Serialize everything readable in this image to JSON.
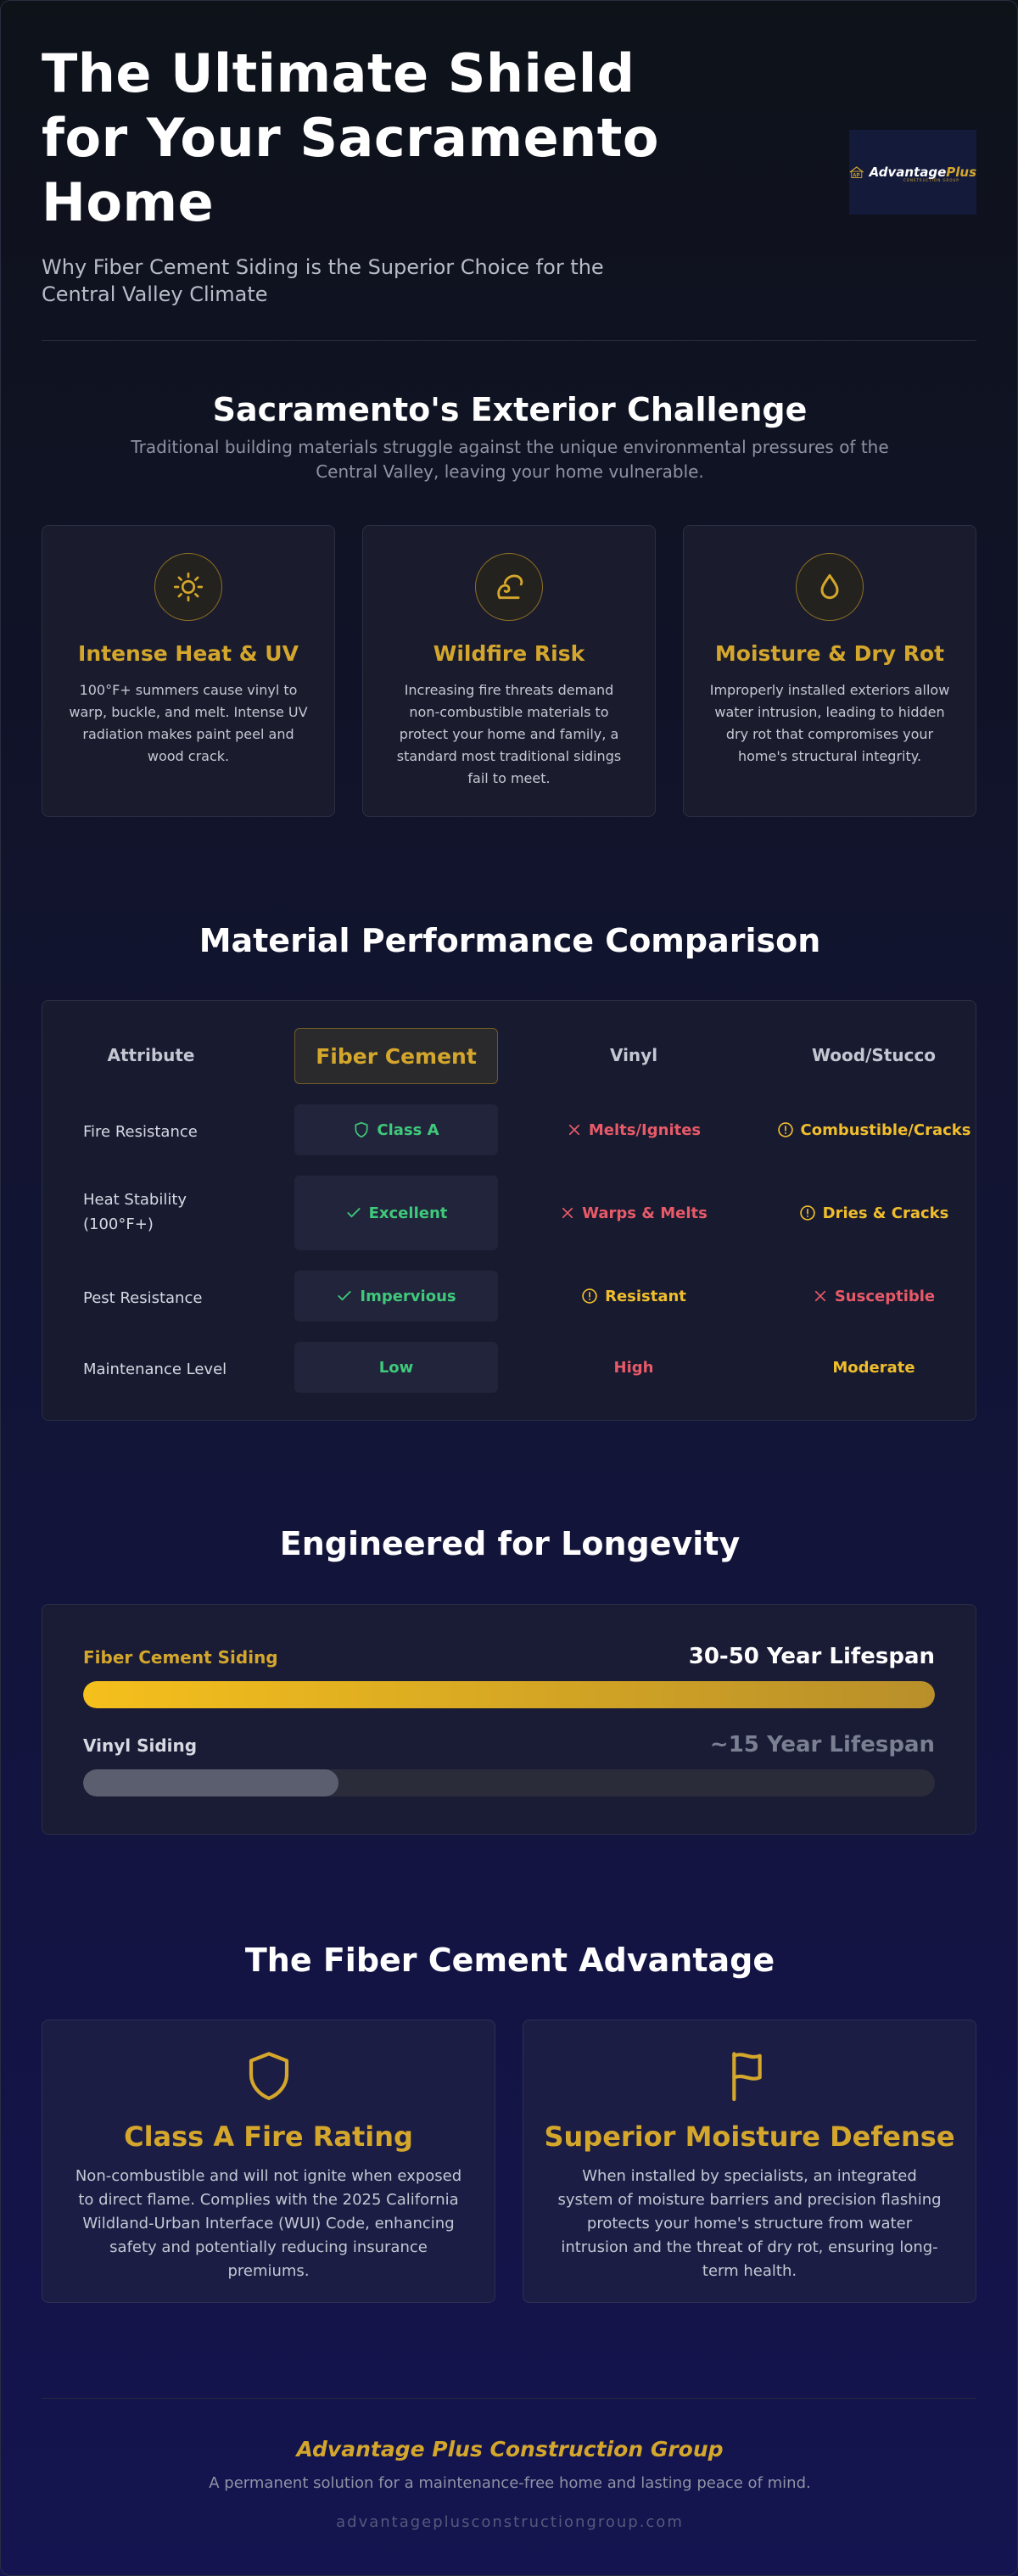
{
  "header": {
    "title": "The Ultimate Shield for Your Sacramento Home",
    "subtitle": "Why Fiber Cement Siding is the Superior Choice for the Central Valley Climate",
    "logo": {
      "brand": "Advantage",
      "brand_accent": "Plus",
      "tagline": "CONSTRUCTION GROUP"
    }
  },
  "challenge": {
    "title": "Sacramento's Exterior Challenge",
    "subtitle": "Traditional building materials struggle against the unique environmental pressures of the Central Valley, leaving your home vulnerable.",
    "cards": [
      {
        "icon": "sun-icon",
        "title": "Intense Heat & UV",
        "text": "100°F+ summers cause vinyl to warp, buckle, and melt. Intense UV radiation makes paint peel and wood crack."
      },
      {
        "icon": "fire-icon",
        "title": "Wildfire Risk",
        "text": "Increasing fire threats demand non-combustible materials to protect your home and family, a standard most traditional sidings fail to meet."
      },
      {
        "icon": "droplet-icon",
        "title": "Moisture & Dry Rot",
        "text": "Improperly installed exteriors allow water intrusion, leading to hidden dry rot that compromises your home's structural integrity."
      }
    ]
  },
  "comparison": {
    "title": "Material Performance Comparison",
    "headers": [
      "Attribute",
      "Fiber Cement",
      "Vinyl",
      "Wood/Stucco"
    ],
    "rows": [
      {
        "label": "Fire Resistance",
        "fiber": "Class A",
        "vinyl": "Melts/Ignites",
        "wood": "Combustible/Cracks"
      },
      {
        "label": "Heat Stability (100°F+)",
        "fiber": "Excellent",
        "vinyl": "Warps & Melts",
        "wood": "Dries & Cracks"
      },
      {
        "label": "Pest Resistance",
        "fiber": "Impervious",
        "vinyl": "Resistant",
        "wood": "Susceptible"
      },
      {
        "label": "Maintenance Level",
        "fiber": "Low",
        "vinyl": "High",
        "wood": "Moderate"
      }
    ],
    "colors": {
      "good": "#3fc97a",
      "bad": "#e85a68",
      "warn": "#f0be2c"
    }
  },
  "longevity": {
    "title": "Engineered for Longevity",
    "bars": [
      {
        "label": "Fiber Cement Siding",
        "value": "30-50 Year Lifespan",
        "fill_fraction": 1.0
      },
      {
        "label": "Vinyl Siding",
        "value": "~15 Year Lifespan",
        "fill_fraction": 0.3
      }
    ]
  },
  "advantage": {
    "title": "The Fiber Cement Advantage",
    "cards": [
      {
        "icon": "shield-icon",
        "title": "Class A Fire Rating",
        "text": "Non-combustible and will not ignite when exposed to direct flame. Complies with the 2025 California Wildland-Urban Interface (WUI) Code, enhancing safety and potentially reducing insurance premiums."
      },
      {
        "icon": "flag-icon",
        "title": "Superior Moisture Defense",
        "text": "When installed by specialists, an integrated system of moisture barriers and precision flashing protects your home's structure from water intrusion and the threat of dry rot, ensuring long-term health."
      }
    ]
  },
  "footer": {
    "company": "Advantage Plus Construction Group",
    "tagline": "A permanent solution for a maintenance-free home and lasting peace of mind.",
    "url": "advantageplusconstructiongroup.com"
  },
  "accent": "#d4a72c"
}
